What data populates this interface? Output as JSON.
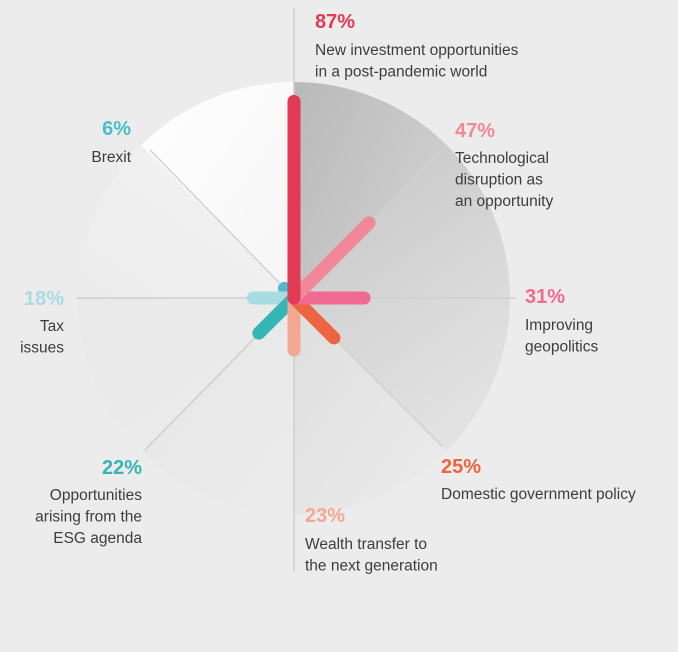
{
  "chart_data": {
    "type": "radial-bar",
    "max": 100,
    "categories": [
      {
        "value": 87,
        "pct_label": "87%",
        "label_lines": [
          "New investment opportunities",
          "in a post-pandemic world"
        ],
        "color": "#e23a55"
      },
      {
        "value": 47,
        "pct_label": "47%",
        "label_lines": [
          "Technological",
          "disruption as",
          "an opportunity"
        ],
        "color": "#f0889a"
      },
      {
        "value": 31,
        "pct_label": "31%",
        "label_lines": [
          "Improving",
          "geopolitics"
        ],
        "color": "#f06a94"
      },
      {
        "value": 25,
        "pct_label": "25%",
        "label_lines": [
          "Domestic government policy"
        ],
        "color": "#ec6440"
      },
      {
        "value": 23,
        "pct_label": "23%",
        "label_lines": [
          "Wealth transfer to",
          "the next generation"
        ],
        "color": "#f3a892"
      },
      {
        "value": 22,
        "pct_label": "22%",
        "label_lines": [
          "Opportunities",
          "arising from the",
          "ESG agenda"
        ],
        "color": "#35b5b5"
      },
      {
        "value": 18,
        "pct_label": "18%",
        "label_lines": [
          "Tax",
          "issues"
        ],
        "color": "#a9dbe2"
      },
      {
        "value": 6,
        "pct_label": "6%",
        "label_lines": [
          "Brexit"
        ],
        "color": "#4bbccc"
      }
    ]
  }
}
